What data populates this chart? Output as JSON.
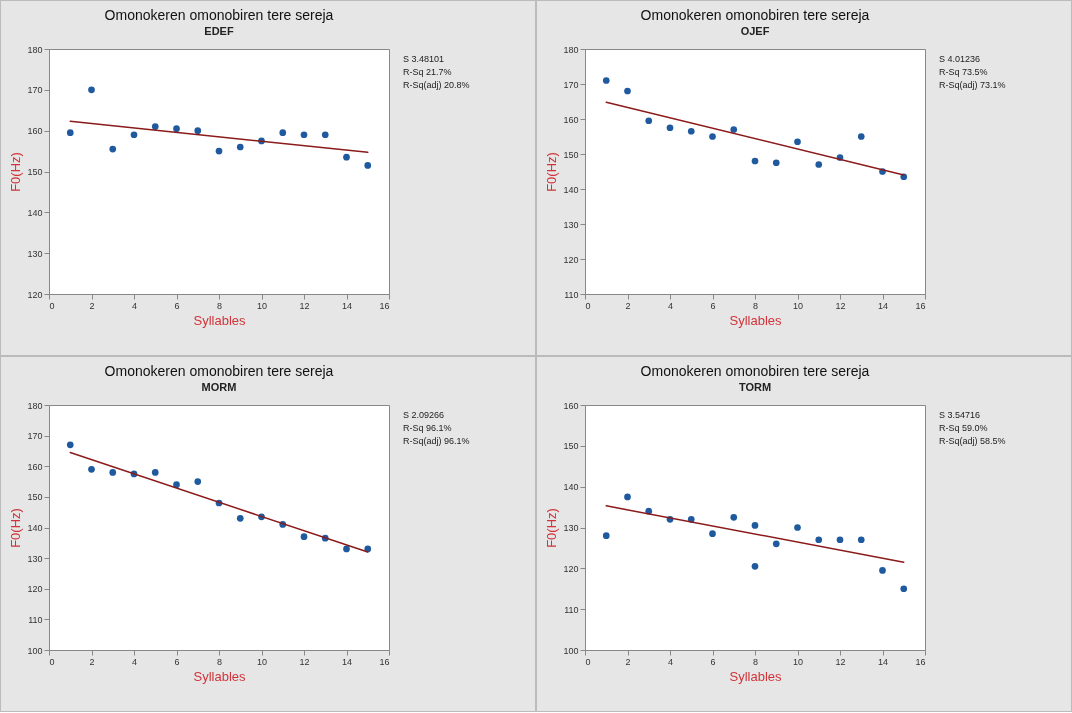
{
  "chart_data": [
    {
      "type": "scatter",
      "title": "Omonokeren omonobiren tere sereja",
      "subtitle": "EDEF",
      "xlabel": "Syllables",
      "ylabel": "F0(Hz)",
      "xlim": [
        0,
        16
      ],
      "ylim": [
        120,
        180
      ],
      "xticks": [
        0,
        2,
        4,
        6,
        8,
        10,
        12,
        14,
        16
      ],
      "yticks": [
        120,
        130,
        140,
        150,
        160,
        170,
        180
      ],
      "marker": "circle",
      "annotations": [
        "S 3.48101",
        "R-Sq 21.7%",
        "R-Sq(adj) 20.8%"
      ],
      "series": [
        {
          "type": "scatter",
          "color": "#1f5a9e",
          "x": [
            1,
            2,
            3,
            4,
            5,
            6,
            7,
            8,
            9,
            10,
            11,
            12,
            13,
            14,
            15
          ],
          "values": [
            159.5,
            170,
            155.5,
            159,
            161,
            160.5,
            160,
            155,
            156,
            157.5,
            159.5,
            159,
            159,
            153.5,
            151.5
          ]
        },
        {
          "type": "line",
          "marker": "none",
          "color": "#8b1a1a",
          "x": [
            1,
            15
          ],
          "values": [
            162.3,
            154.7
          ]
        }
      ]
    },
    {
      "type": "scatter",
      "title": "Omonokeren omonobiren tere sereja",
      "subtitle": "OJEF",
      "xlabel": "Syllables",
      "ylabel": "F0(Hz)",
      "xlim": [
        0,
        16
      ],
      "ylim": [
        110,
        180
      ],
      "xticks": [
        0,
        2,
        4,
        6,
        8,
        10,
        12,
        14,
        16
      ],
      "yticks": [
        110,
        120,
        130,
        140,
        150,
        160,
        170,
        180
      ],
      "marker": "circle",
      "annotations": [
        "S 4.01236",
        "R-Sq 73.5%",
        "R-Sq(adj) 73.1%"
      ],
      "series": [
        {
          "type": "scatter",
          "color": "#1f5a9e",
          "x": [
            1,
            2,
            3,
            4,
            5,
            6,
            7,
            8,
            9,
            10,
            11,
            12,
            13,
            14,
            15
          ],
          "values": [
            171,
            168,
            159.5,
            157.5,
            156.5,
            155,
            157,
            148,
            147.5,
            153.5,
            147,
            149,
            155,
            145,
            143.5
          ]
        },
        {
          "type": "line",
          "marker": "none",
          "color": "#8b1a1a",
          "x": [
            1,
            15
          ],
          "values": [
            164.8,
            144
          ]
        }
      ]
    },
    {
      "type": "scatter",
      "title": "Omonokeren omonobiren tere sereja",
      "subtitle": "MORM",
      "xlabel": "Syllables",
      "ylabel": "F0(Hz)",
      "xlim": [
        0,
        16
      ],
      "ylim": [
        100,
        180
      ],
      "xticks": [
        0,
        2,
        4,
        6,
        8,
        10,
        12,
        14,
        16
      ],
      "yticks": [
        100,
        110,
        120,
        130,
        140,
        150,
        160,
        170,
        180
      ],
      "marker": "circle",
      "annotations": [
        "S 2.09266",
        "R-Sq 96.1%",
        "R-Sq(adj) 96.1%"
      ],
      "series": [
        {
          "type": "scatter",
          "color": "#1f5a9e",
          "x": [
            1,
            2,
            3,
            4,
            5,
            6,
            7,
            8,
            9,
            10,
            11,
            12,
            13,
            14,
            15
          ],
          "values": [
            167,
            159,
            158,
            157.5,
            158,
            154,
            155,
            148,
            143,
            143.5,
            141,
            137,
            136.5,
            133,
            133
          ]
        },
        {
          "type": "line",
          "marker": "none",
          "color": "#8b1a1a",
          "x": [
            1,
            15
          ],
          "values": [
            164.5,
            132
          ]
        }
      ]
    },
    {
      "type": "scatter",
      "title": "Omonokeren omonobiren tere sereja",
      "subtitle": "TORM",
      "xlabel": "Syllables",
      "ylabel": "F0(Hz)",
      "xlim": [
        0,
        16
      ],
      "ylim": [
        100,
        160
      ],
      "xticks": [
        0,
        2,
        4,
        6,
        8,
        10,
        12,
        14,
        16
      ],
      "yticks": [
        100,
        110,
        120,
        130,
        140,
        150,
        160
      ],
      "marker": "circle",
      "annotations": [
        "S 3.54716",
        "R-Sq 59.0%",
        "R-Sq(adj) 58.5%"
      ],
      "series": [
        {
          "type": "scatter",
          "color": "#1f5a9e",
          "x": [
            1,
            2,
            3,
            4,
            5,
            6,
            7,
            8,
            8,
            9,
            10,
            11,
            12,
            13,
            14,
            15
          ],
          "values": [
            128,
            137.5,
            134,
            132,
            132,
            128.5,
            132.5,
            130.5,
            120.5,
            126,
            130,
            127,
            127,
            127,
            119.5,
            115
          ]
        },
        {
          "type": "line",
          "marker": "none",
          "color": "#8b1a1a",
          "x": [
            1,
            15
          ],
          "values": [
            135.3,
            121.5
          ]
        }
      ]
    }
  ]
}
